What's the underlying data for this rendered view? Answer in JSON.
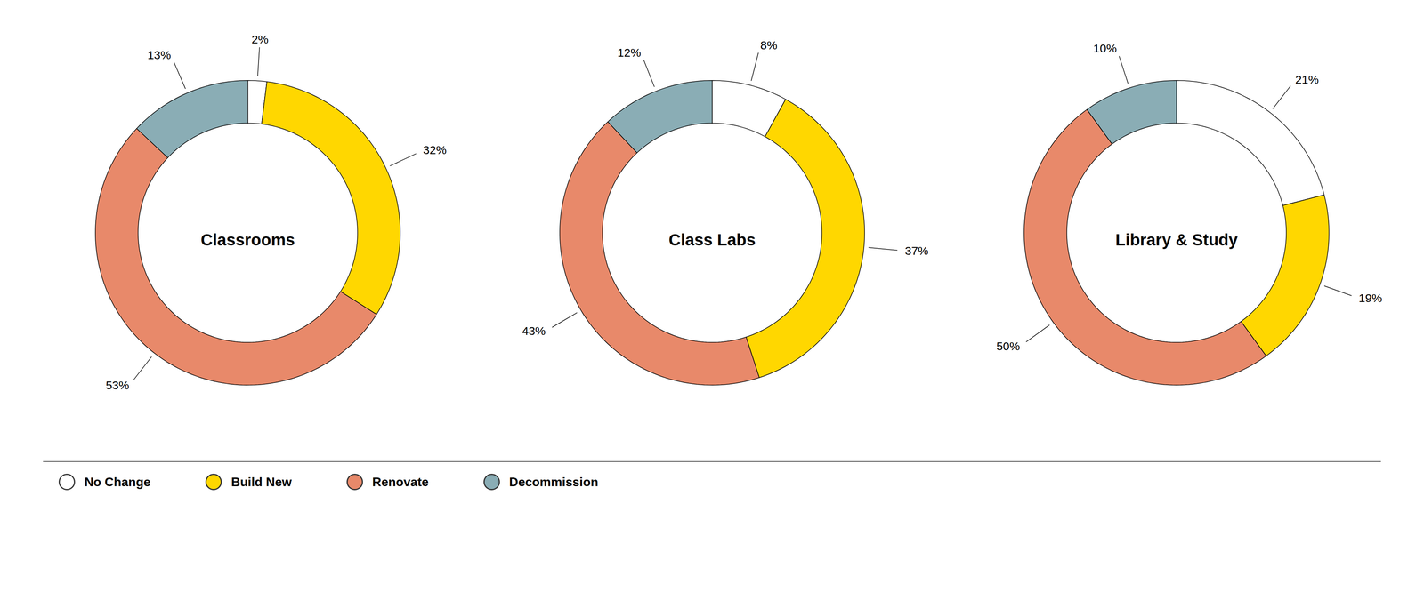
{
  "chart_data": [
    {
      "type": "donut",
      "title": "Classrooms",
      "categories": [
        "No Change",
        "Build New",
        "Renovate",
        "Decommission"
      ],
      "values": [
        2,
        32,
        53,
        13
      ],
      "value_labels": [
        "2%",
        "32%",
        "53%",
        "13%"
      ],
      "colors": [
        "#FFFFFF",
        "#FFD700",
        "#E8896A",
        "#8AADB5"
      ],
      "data_labels": true,
      "legend": "bottom"
    },
    {
      "type": "donut",
      "title": "Class Labs",
      "categories": [
        "No Change",
        "Build New",
        "Renovate",
        "Decommission"
      ],
      "values": [
        8,
        37,
        43,
        12
      ],
      "value_labels": [
        "8%",
        "37%",
        "43%",
        "12%"
      ],
      "colors": [
        "#FFFFFF",
        "#FFD700",
        "#E8896A",
        "#8AADB5"
      ],
      "data_labels": true,
      "legend": "bottom"
    },
    {
      "type": "donut",
      "title": "Library & Study",
      "categories": [
        "No Change",
        "Build New",
        "Renovate",
        "Decommission"
      ],
      "values": [
        21,
        19,
        50,
        10
      ],
      "value_labels": [
        "21%",
        "19%",
        "50%",
        "10%"
      ],
      "colors": [
        "#FFFFFF",
        "#FFD700",
        "#E8896A",
        "#8AADB5"
      ],
      "data_labels": true,
      "legend": "bottom"
    }
  ]
}
